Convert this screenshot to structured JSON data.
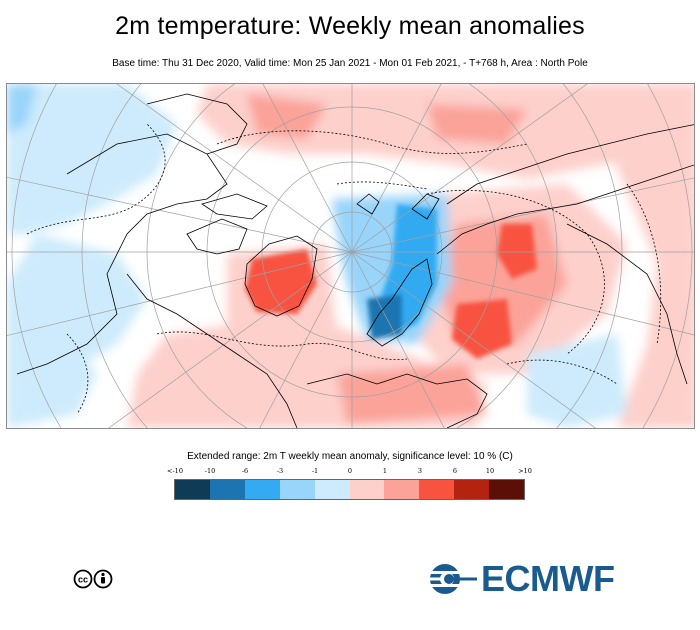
{
  "header": {
    "title": "2m temperature: Weekly mean anomalies",
    "subtitle": "Base time: Thu 31 Dec 2020, Valid time: Mon 25 Jan 2021 - Mon 01 Feb 2021, - T+768 h, Area : North Pole"
  },
  "legend": {
    "title": "Extended range: 2m T weekly mean anomaly, significance level: 10 % (C)",
    "ticks": [
      "<-10",
      "-10",
      "-6",
      "-3",
      "-1",
      "0",
      "1",
      "3",
      "6",
      "10",
      ">10"
    ],
    "colors": [
      "#0f3b57",
      "#1c74b0",
      "#33aaf2",
      "#99d4fa",
      "#cdebfc",
      "#fdd0cc",
      "#fba399",
      "#f8533f",
      "#b3230f",
      "#5c0f06"
    ]
  },
  "map": {
    "area": "North Pole",
    "ocean_color": "#ffffff",
    "coast_color": "#000000",
    "grid_color": "#a0a0a0"
  },
  "footer": {
    "license_icon": "creative-commons-by-icon",
    "logo_text": "ECMWF",
    "logo_color": "#1a5b8f"
  }
}
